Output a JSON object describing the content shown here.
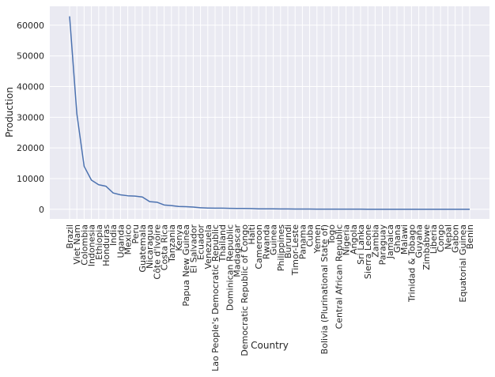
{
  "chart_data": {
    "type": "line",
    "xlabel": "Country",
    "ylabel": "Production",
    "ylim": [
      -3150,
      66150
    ],
    "yticks": [
      0,
      10000,
      20000,
      30000,
      40000,
      50000,
      60000
    ],
    "grid": true,
    "legend": "none",
    "style": {
      "background": "#eaeaf2",
      "grid_color": "#ffffff",
      "line_color": "#4c72b0"
    },
    "categories": [
      "Brazil",
      "Viet Nam",
      "Colombia",
      "Indonesia",
      "Ethiopia",
      "Honduras",
      "India",
      "Uganda",
      "Mexico",
      "Peru",
      "Guatemala",
      "Nicaragua",
      "Côte d'Ivoire",
      "Costa Rica",
      "Tanzania",
      "Kenya",
      "Papua New Guinea",
      "El Salvador",
      "Ecuador",
      "Venezuela",
      "Lao People's Democratic Republic",
      "Thailand",
      "Dominican Republic",
      "Madagascar",
      "Democratic Republic of Congo",
      "Haiti",
      "Cameroon",
      "Rwanda",
      "Guinea",
      "Philippines",
      "Burundi",
      "Timor-Leste",
      "Panama",
      "Cuba",
      "Yemen",
      "Bolivia (Plurinational State of)",
      "Togo",
      "Central African Republic",
      "Nigeria",
      "Angola",
      "Sri Lanka",
      "Sierra Leone",
      "Zambia",
      "Paraguay",
      "Jamaica",
      "Ghana",
      "Malawi",
      "Trinidad & Tobago",
      "Guyana",
      "Zimbabwe",
      "Liberia",
      "Congo",
      "Nepal",
      "Gabon",
      "Equatorial Guinea",
      "Benin"
    ],
    "values": [
      62900,
      31100,
      14000,
      9500,
      8000,
      7500,
      5300,
      4700,
      4400,
      4300,
      4000,
      2500,
      2300,
      1400,
      1200,
      900,
      850,
      700,
      500,
      400,
      350,
      350,
      300,
      280,
      250,
      220,
      150,
      150,
      120,
      100,
      90,
      80,
      70,
      60,
      50,
      45,
      40,
      35,
      30,
      30,
      25,
      20,
      15,
      15,
      10,
      10,
      10,
      8,
      8,
      6,
      5,
      5,
      4,
      3,
      2,
      1
    ]
  }
}
